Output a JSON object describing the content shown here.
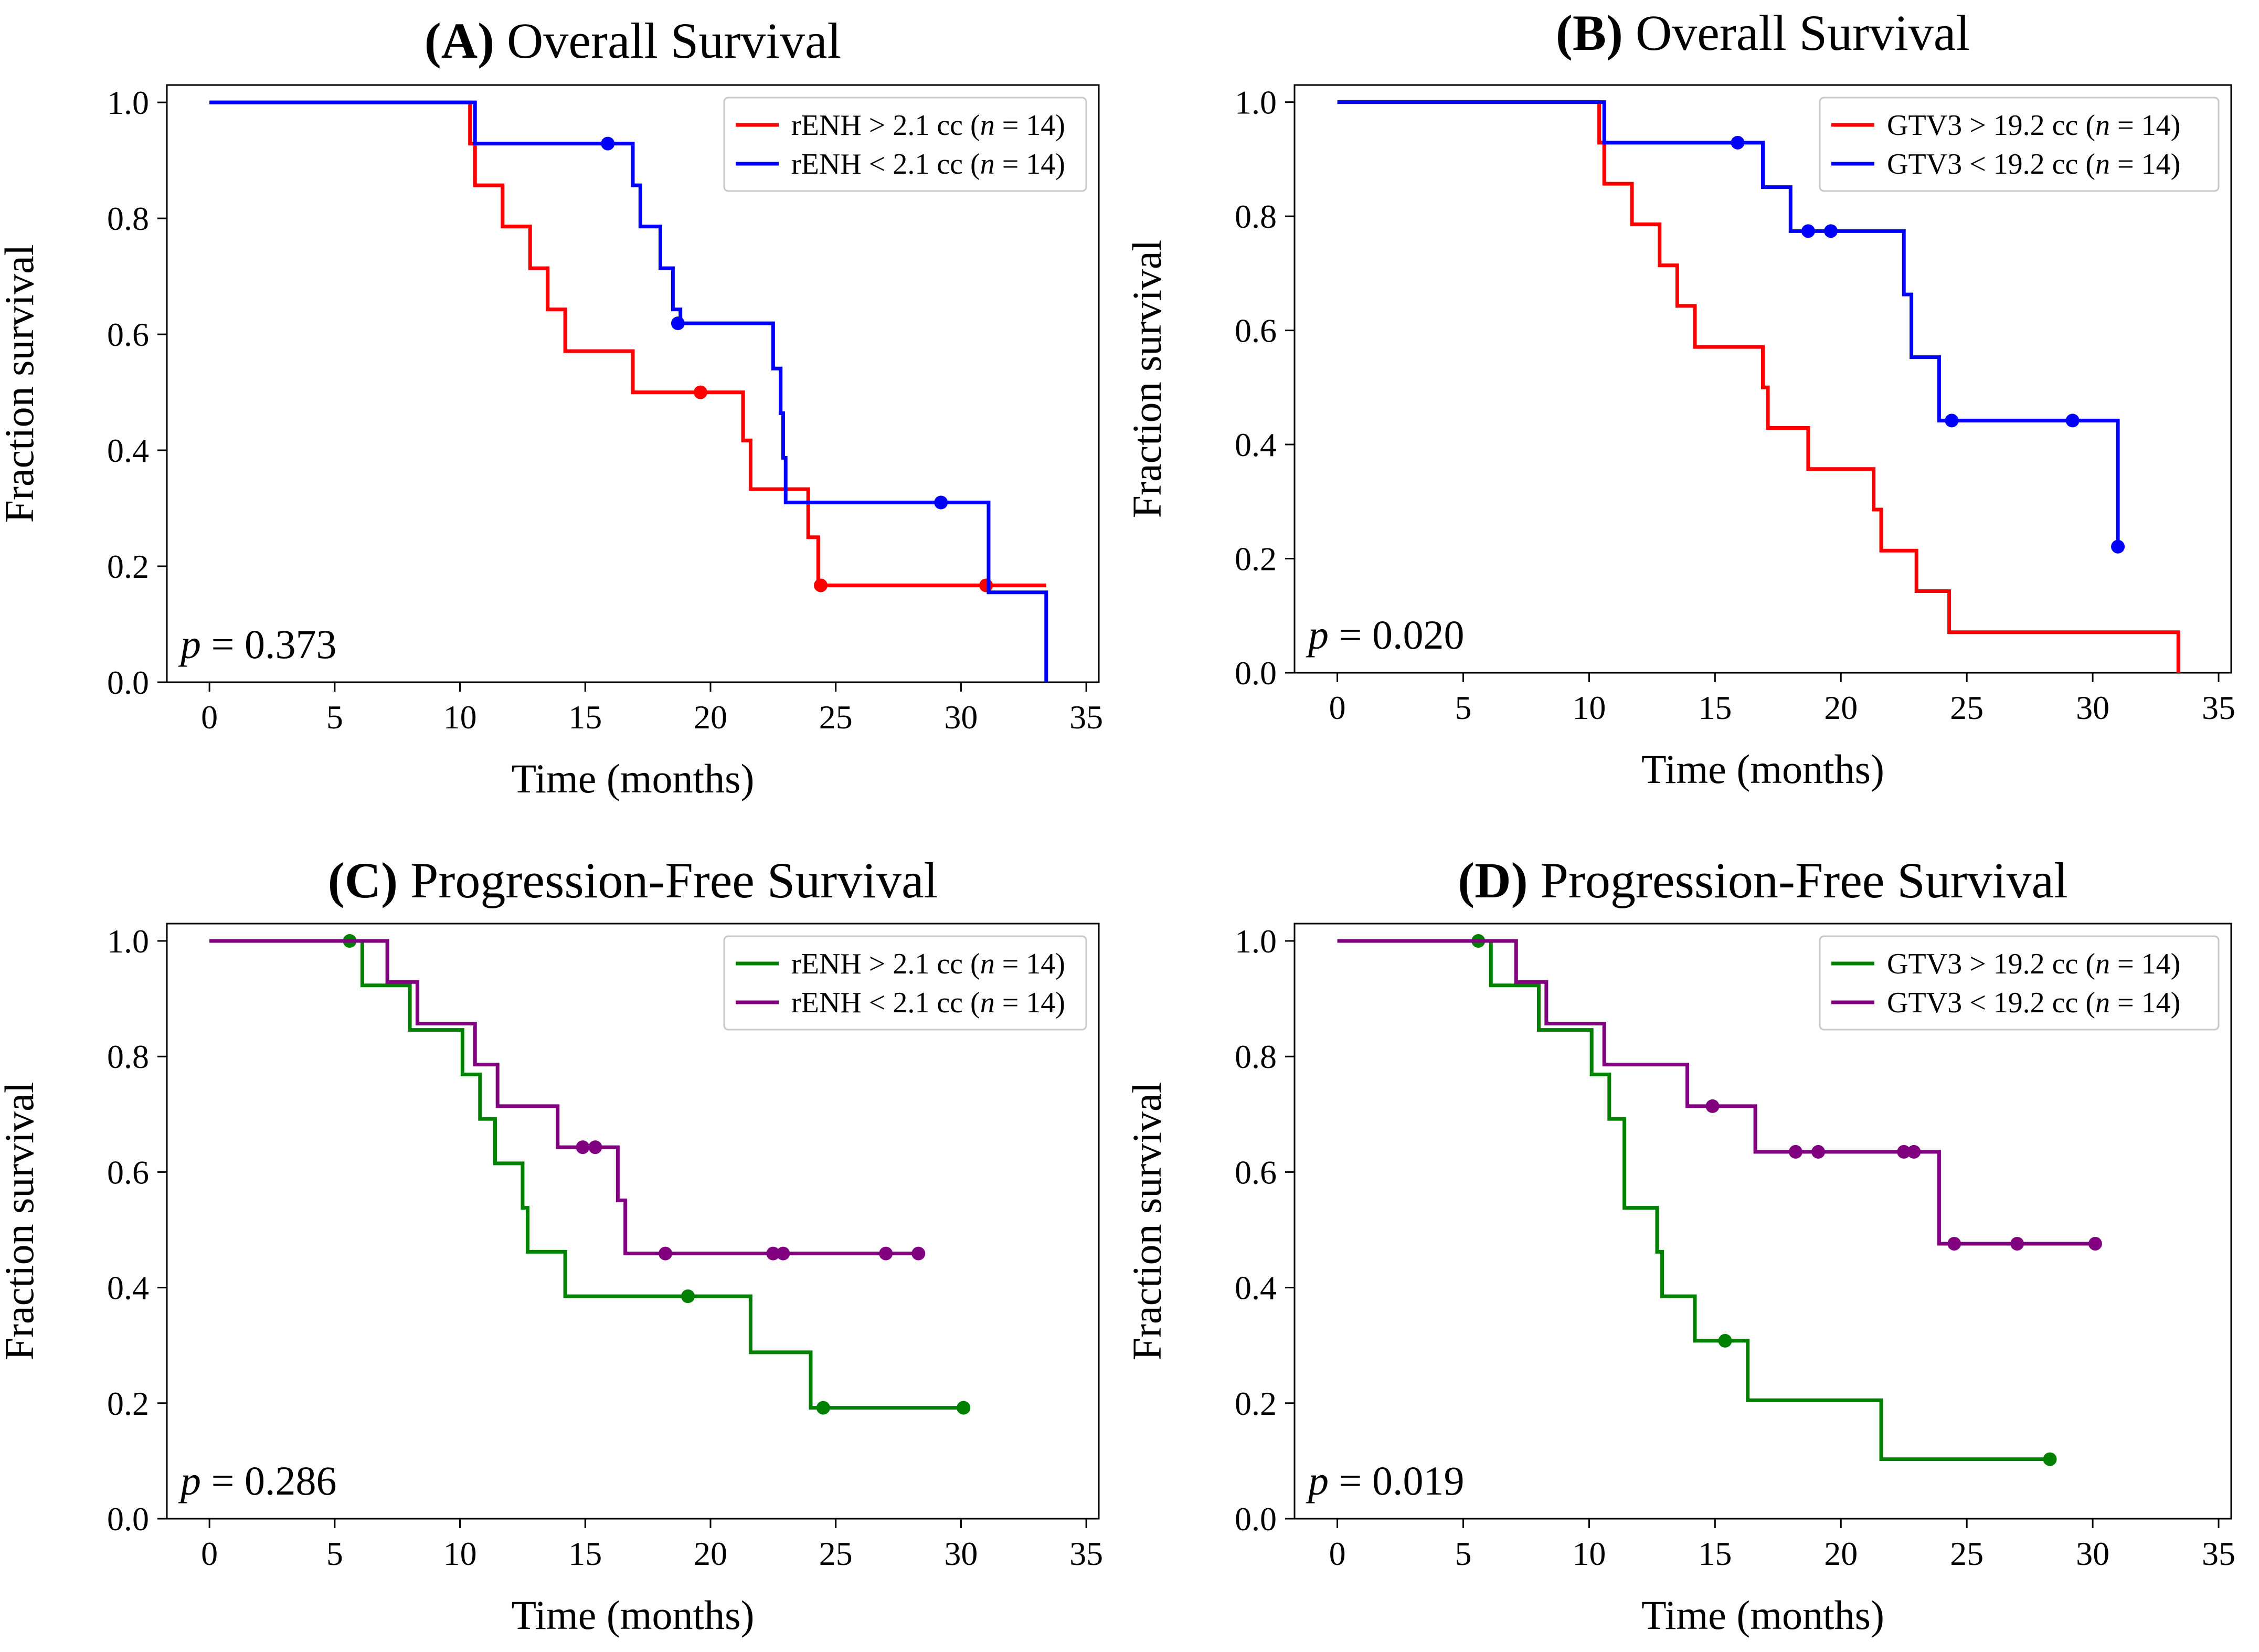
{
  "chart_data": [
    {
      "type": "line",
      "panel_id": "A",
      "title_bold": "(A)",
      "title": "Overall Survival",
      "xlabel": "Time (months)",
      "ylabel": "Fraction survival",
      "xlim": [
        -1.7,
        35.5
      ],
      "ylim": [
        0,
        1.03
      ],
      "xticks": [
        0,
        5,
        10,
        15,
        20,
        25,
        30,
        35
      ],
      "yticks": [
        0.0,
        0.2,
        0.4,
        0.6,
        0.8,
        1.0
      ],
      "xtick_labels": [
        "0",
        "5",
        "10",
        "15",
        "20",
        "25",
        "30",
        "35"
      ],
      "ytick_labels": [
        "0.0",
        "0.2",
        "0.4",
        "0.6",
        "0.8",
        "1.0"
      ],
      "p_label": "p",
      "p_value": "= 0.373",
      "legend_position": "top-right",
      "series": [
        {
          "name_prefix": "rENH > 2.1 cc (",
          "name_n": "n",
          "name_suffix": " = 14)",
          "color": "#ff0000",
          "steps": [
            [
              0,
              1.0
            ],
            [
              10.4,
              0.929
            ],
            [
              10.6,
              0.857
            ],
            [
              11.7,
              0.786
            ],
            [
              12.8,
              0.714
            ],
            [
              13.5,
              0.643
            ],
            [
              14.2,
              0.571
            ],
            [
              16.9,
              0.5
            ],
            [
              21.3,
              0.417
            ],
            [
              21.6,
              0.333
            ],
            [
              23.9,
              0.25
            ],
            [
              24.3,
              0.167
            ],
            [
              33.4,
              0.167
            ]
          ],
          "censored": [
            [
              19.6,
              0.5
            ],
            [
              24.4,
              0.167
            ],
            [
              31.0,
              0.167
            ]
          ]
        },
        {
          "name_prefix": "rENH < 2.1 cc (",
          "name_n": "n",
          "name_suffix": " = 14)",
          "color": "#0000ff",
          "steps": [
            [
              0,
              1.0
            ],
            [
              10.6,
              0.929
            ],
            [
              16.9,
              0.857
            ],
            [
              17.2,
              0.786
            ],
            [
              18.0,
              0.714
            ],
            [
              18.5,
              0.643
            ],
            [
              18.8,
              0.619
            ],
            [
              22.5,
              0.541
            ],
            [
              22.8,
              0.464
            ],
            [
              22.9,
              0.387
            ],
            [
              23.0,
              0.31
            ],
            [
              31.1,
              0.155
            ],
            [
              33.4,
              0.0
            ]
          ],
          "censored": [
            [
              15.9,
              0.929
            ],
            [
              18.7,
              0.619
            ],
            [
              29.2,
              0.31
            ]
          ]
        }
      ]
    },
    {
      "type": "line",
      "panel_id": "B",
      "title_bold": "(B)",
      "title": "Overall Survival",
      "xlabel": "Time (months)",
      "ylabel": "Fraction survival",
      "xlim": [
        -1.7,
        35.5
      ],
      "ylim": [
        0,
        1.03
      ],
      "xticks": [
        0,
        5,
        10,
        15,
        20,
        25,
        30,
        35
      ],
      "yticks": [
        0.0,
        0.2,
        0.4,
        0.6,
        0.8,
        1.0
      ],
      "xtick_labels": [
        "0",
        "5",
        "10",
        "15",
        "20",
        "25",
        "30",
        "35"
      ],
      "ytick_labels": [
        "0.0",
        "0.2",
        "0.4",
        "0.6",
        "0.8",
        "1.0"
      ],
      "p_label": "p",
      "p_value": "= 0.020",
      "legend_position": "top-right",
      "series": [
        {
          "name_prefix": "GTV3 > 19.2 cc (",
          "name_n": "n",
          "name_suffix": " = 14)",
          "color": "#ff0000",
          "steps": [
            [
              0,
              1.0
            ],
            [
              10.4,
              0.929
            ],
            [
              10.6,
              0.857
            ],
            [
              11.7,
              0.786
            ],
            [
              12.8,
              0.714
            ],
            [
              13.5,
              0.643
            ],
            [
              14.2,
              0.571
            ],
            [
              16.9,
              0.5
            ],
            [
              17.1,
              0.429
            ],
            [
              18.7,
              0.357
            ],
            [
              21.3,
              0.286
            ],
            [
              21.6,
              0.214
            ],
            [
              23.0,
              0.143
            ],
            [
              24.3,
              0.071
            ],
            [
              33.4,
              0.0
            ]
          ],
          "censored": []
        },
        {
          "name_prefix": "GTV3 < 19.2 cc (",
          "name_n": "n",
          "name_suffix": " = 14)",
          "color": "#0000ff",
          "steps": [
            [
              0,
              1.0
            ],
            [
              10.6,
              0.929
            ],
            [
              16.9,
              0.851
            ],
            [
              18.0,
              0.774
            ],
            [
              22.5,
              0.663
            ],
            [
              22.8,
              0.553
            ],
            [
              23.9,
              0.442
            ],
            [
              31.0,
              0.221
            ]
          ],
          "censored": [
            [
              15.9,
              0.929
            ],
            [
              18.7,
              0.774
            ],
            [
              19.6,
              0.774
            ],
            [
              24.4,
              0.442
            ],
            [
              29.2,
              0.442
            ],
            [
              31.0,
              0.221
            ]
          ]
        }
      ]
    },
    {
      "type": "line",
      "panel_id": "C",
      "title_bold": "(C)",
      "title": "Progression-Free Survival",
      "xlabel": "Time (months)",
      "ylabel": "Fraction survival",
      "xlim": [
        -1.7,
        35.5
      ],
      "ylim": [
        0,
        1.03
      ],
      "xticks": [
        0,
        5,
        10,
        15,
        20,
        25,
        30,
        35
      ],
      "yticks": [
        0.0,
        0.2,
        0.4,
        0.6,
        0.8,
        1.0
      ],
      "xtick_labels": [
        "0",
        "5",
        "10",
        "15",
        "20",
        "25",
        "30",
        "35"
      ],
      "ytick_labels": [
        "0.0",
        "0.2",
        "0.4",
        "0.6",
        "0.8",
        "1.0"
      ],
      "p_label": "p",
      "p_value": "= 0.286",
      "legend_position": "top-right",
      "series": [
        {
          "name_prefix": "rENH > 2.1 cc (",
          "name_n": "n",
          "name_suffix": " = 14)",
          "color": "#008000",
          "steps": [
            [
              0,
              1.0
            ],
            [
              6.1,
              0.923
            ],
            [
              8.0,
              0.846
            ],
            [
              10.1,
              0.769
            ],
            [
              10.8,
              0.692
            ],
            [
              11.4,
              0.615
            ],
            [
              12.5,
              0.538
            ],
            [
              12.7,
              0.462
            ],
            [
              14.2,
              0.385
            ],
            [
              21.6,
              0.288
            ],
            [
              24.0,
              0.192
            ],
            [
              30.1,
              0.192
            ]
          ],
          "censored": [
            [
              5.6,
              1.0
            ],
            [
              19.1,
              0.385
            ],
            [
              24.5,
              0.192
            ],
            [
              30.1,
              0.192
            ]
          ]
        },
        {
          "name_prefix": "rENH < 2.1 cc (",
          "name_n": "n",
          "name_suffix": " = 14)",
          "color": "#800080",
          "steps": [
            [
              0,
              1.0
            ],
            [
              7.1,
              0.929
            ],
            [
              8.3,
              0.857
            ],
            [
              10.6,
              0.786
            ],
            [
              11.5,
              0.714
            ],
            [
              13.9,
              0.643
            ],
            [
              16.3,
              0.551
            ],
            [
              16.6,
              0.459
            ],
            [
              28.3,
              0.459
            ]
          ],
          "censored": [
            [
              14.9,
              0.643
            ],
            [
              15.4,
              0.643
            ],
            [
              18.2,
              0.459
            ],
            [
              22.5,
              0.459
            ],
            [
              22.9,
              0.459
            ],
            [
              27.0,
              0.459
            ],
            [
              28.3,
              0.459
            ]
          ]
        }
      ]
    },
    {
      "type": "line",
      "panel_id": "D",
      "title_bold": "(D)",
      "title": "Progression-Free Survival",
      "xlabel": "Time (months)",
      "ylabel": "Fraction survival",
      "xlim": [
        -1.7,
        35.5
      ],
      "ylim": [
        0,
        1.03
      ],
      "xticks": [
        0,
        5,
        10,
        15,
        20,
        25,
        30,
        35
      ],
      "yticks": [
        0.0,
        0.2,
        0.4,
        0.6,
        0.8,
        1.0
      ],
      "xtick_labels": [
        "0",
        "5",
        "10",
        "15",
        "20",
        "25",
        "30",
        "35"
      ],
      "ytick_labels": [
        "0.0",
        "0.2",
        "0.4",
        "0.6",
        "0.8",
        "1.0"
      ],
      "p_label": "p",
      "p_value": "= 0.019",
      "legend_position": "top-right",
      "series": [
        {
          "name_prefix": "GTV3 > 19.2 cc (",
          "name_n": "n",
          "name_suffix": " = 14)",
          "color": "#008000",
          "steps": [
            [
              0,
              1.0
            ],
            [
              6.1,
              0.923
            ],
            [
              8.0,
              0.846
            ],
            [
              10.1,
              0.769
            ],
            [
              10.8,
              0.692
            ],
            [
              11.4,
              0.538
            ],
            [
              12.7,
              0.462
            ],
            [
              12.9,
              0.385
            ],
            [
              14.2,
              0.308
            ],
            [
              16.3,
              0.205
            ],
            [
              21.6,
              0.103
            ],
            [
              28.3,
              0.103
            ]
          ],
          "censored": [
            [
              5.6,
              1.0
            ],
            [
              15.4,
              0.308
            ],
            [
              28.3,
              0.103
            ]
          ]
        },
        {
          "name_prefix": "GTV3 < 19.2 cc (",
          "name_n": "n",
          "name_suffix": " = 14)",
          "color": "#800080",
          "steps": [
            [
              0,
              1.0
            ],
            [
              7.1,
              0.929
            ],
            [
              8.3,
              0.857
            ],
            [
              10.6,
              0.786
            ],
            [
              13.9,
              0.714
            ],
            [
              16.6,
              0.635
            ],
            [
              23.9,
              0.476
            ],
            [
              30.1,
              0.476
            ]
          ],
          "censored": [
            [
              14.9,
              0.714
            ],
            [
              18.2,
              0.635
            ],
            [
              19.1,
              0.635
            ],
            [
              22.5,
              0.635
            ],
            [
              22.9,
              0.635
            ],
            [
              24.5,
              0.476
            ],
            [
              27.0,
              0.476
            ],
            [
              30.1,
              0.476
            ]
          ]
        }
      ]
    }
  ]
}
